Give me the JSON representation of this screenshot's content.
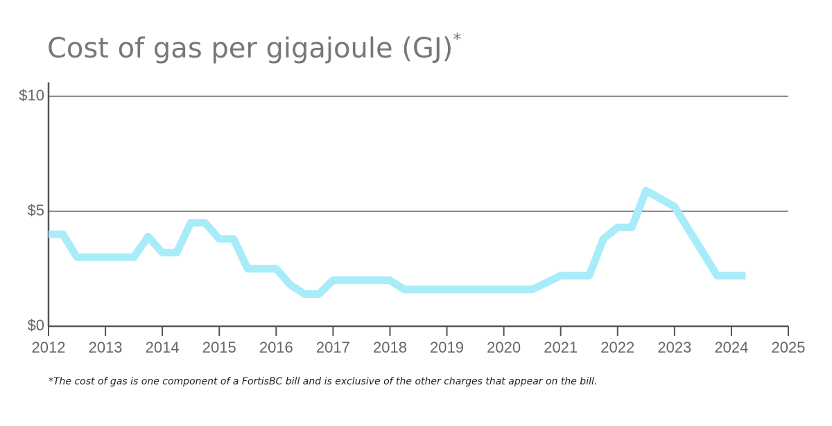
{
  "chart_data": {
    "type": "line",
    "title": "Cost of gas per gigajoule (GJ)",
    "title_superscript": "*",
    "footnote": "*The cost of gas is one component of a FortisBC bill and is exclusive of the other charges that appear on the bill.",
    "x": [
      2012,
      2012.25,
      2012.5,
      2013.5,
      2013.75,
      2014,
      2014.25,
      2014.5,
      2014.75,
      2015,
      2015.25,
      2015.5,
      2016,
      2016.25,
      2016.5,
      2016.75,
      2017,
      2018,
      2018.25,
      2020.5,
      2021,
      2021.5,
      2021.75,
      2022,
      2022.25,
      2022.5,
      2023,
      2023.75,
      2024.25
    ],
    "values": [
      4.0,
      4.0,
      3.0,
      3.0,
      3.9,
      3.2,
      3.2,
      4.5,
      4.5,
      3.8,
      3.8,
      2.5,
      2.5,
      1.8,
      1.4,
      1.4,
      2.0,
      2.0,
      1.6,
      1.6,
      2.2,
      2.2,
      3.8,
      4.3,
      4.3,
      5.9,
      5.2,
      2.2,
      2.2
    ],
    "color": "#a8ecfa",
    "xlim": [
      2012,
      2025
    ],
    "xticks": [
      2012,
      2013,
      2014,
      2015,
      2016,
      2017,
      2018,
      2019,
      2020,
      2021,
      2022,
      2023,
      2024,
      2025
    ],
    "ylim": [
      0,
      10
    ],
    "yticks": [
      {
        "value": 0,
        "label": "$0"
      },
      {
        "value": 5,
        "label": "$5"
      },
      {
        "value": 10,
        "label": "$10"
      }
    ],
    "grid": true
  }
}
